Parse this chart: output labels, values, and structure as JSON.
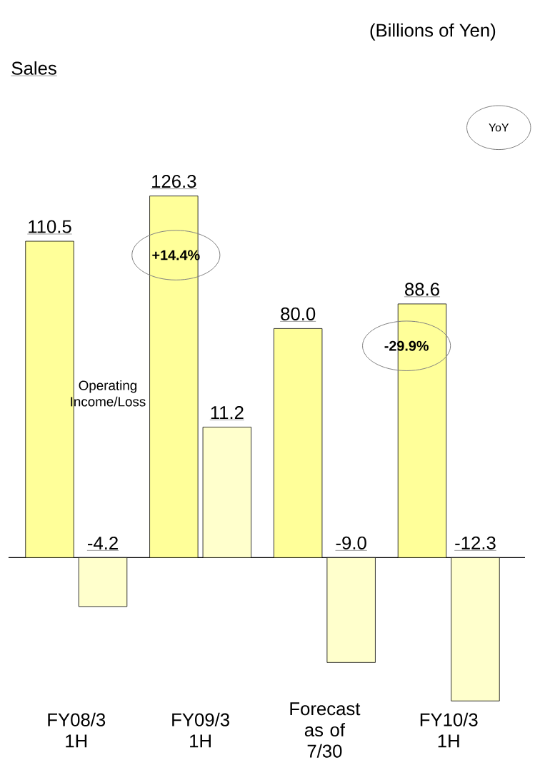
{
  "chart_data": {
    "type": "bar",
    "title": "Sales",
    "categories": [
      "FY08/3 1H",
      "FY09/3 1H",
      "Forecast as of 7/30",
      "FY10/3 1H"
    ],
    "series": [
      {
        "color": "#ffff99",
        "values": [
          110.5,
          126.3,
          80.0,
          88.6
        ],
        "value_labels": [
          "110.5",
          "126.3",
          "80.0",
          "88.6"
        ]
      },
      {
        "name": "Operating Income/Loss",
        "color": "#ffffcc",
        "axis": "y2",
        "values": [
          -4.2,
          11.2,
          -9.0,
          -12.3
        ],
        "value_labels": [
          "-4.2",
          "11.2",
          "-9.0",
          "-12.3"
        ]
      }
    ],
    "tick_labels": false,
    "annotations": [
      "(Billions of Yen)",
      "YoY",
      "+14.4%",
      "-29.9%"
    ]
  }
}
